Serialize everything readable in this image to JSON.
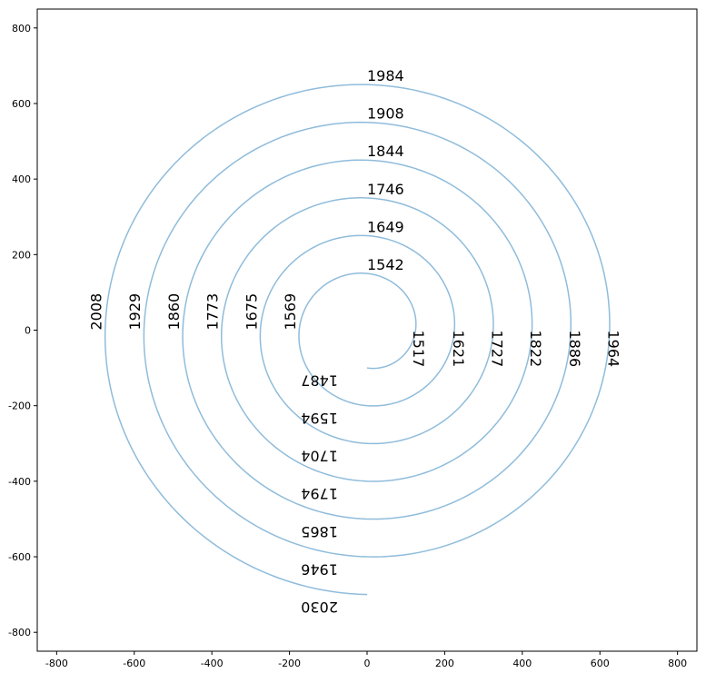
{
  "chart_data": {
    "type": "line",
    "title": "",
    "xlabel": "",
    "ylabel": "",
    "xlim": [
      -850,
      850
    ],
    "ylim": [
      -850,
      850
    ],
    "grid": false,
    "series_color": "#8fbcdb",
    "xticks": [
      -800,
      -600,
      -400,
      -200,
      0,
      200,
      400,
      600,
      800
    ],
    "yticks": [
      -800,
      -600,
      -400,
      -200,
      0,
      200,
      400,
      600,
      800
    ],
    "spiral": {
      "start_radius": 100,
      "end_radius": 700,
      "turns": 6,
      "start_point": [
        0,
        -100
      ],
      "end_point": [
        0,
        -700
      ]
    },
    "year_labels": [
      {
        "text": "1487",
        "x": -75,
        "y": -120,
        "rotation": 180
      },
      {
        "text": "1517",
        "x": 120,
        "y": 0,
        "rotation": 90
      },
      {
        "text": "1542",
        "x": 0,
        "y": 160,
        "rotation": 0
      },
      {
        "text": "1569",
        "x": -185,
        "y": 0,
        "rotation": -90
      },
      {
        "text": "1594",
        "x": -75,
        "y": -220,
        "rotation": 180
      },
      {
        "text": "1621",
        "x": 222,
        "y": 0,
        "rotation": 90
      },
      {
        "text": "1649",
        "x": 0,
        "y": 260,
        "rotation": 0
      },
      {
        "text": "1675",
        "x": -285,
        "y": 0,
        "rotation": -90
      },
      {
        "text": "1704",
        "x": -75,
        "y": -320,
        "rotation": 180
      },
      {
        "text": "1727",
        "x": 322,
        "y": 0,
        "rotation": 90
      },
      {
        "text": "1746",
        "x": 0,
        "y": 360,
        "rotation": 0
      },
      {
        "text": "1773",
        "x": -385,
        "y": 0,
        "rotation": -90
      },
      {
        "text": "1794",
        "x": -75,
        "y": -420,
        "rotation": 180
      },
      {
        "text": "1822",
        "x": 422,
        "y": 0,
        "rotation": 90
      },
      {
        "text": "1844",
        "x": 0,
        "y": 460,
        "rotation": 0
      },
      {
        "text": "1860",
        "x": -485,
        "y": 0,
        "rotation": -90
      },
      {
        "text": "1865",
        "x": -75,
        "y": -520,
        "rotation": 180
      },
      {
        "text": "1886",
        "x": 522,
        "y": 0,
        "rotation": 90
      },
      {
        "text": "1908",
        "x": 0,
        "y": 560,
        "rotation": 0
      },
      {
        "text": "1929",
        "x": -585,
        "y": 0,
        "rotation": -90
      },
      {
        "text": "1946",
        "x": -75,
        "y": -620,
        "rotation": 180
      },
      {
        "text": "1964",
        "x": 622,
        "y": 0,
        "rotation": 90
      },
      {
        "text": "1984",
        "x": 0,
        "y": 660,
        "rotation": 0
      },
      {
        "text": "2008",
        "x": -685,
        "y": 0,
        "rotation": -90
      },
      {
        "text": "2030",
        "x": -75,
        "y": -720,
        "rotation": 180
      }
    ]
  }
}
